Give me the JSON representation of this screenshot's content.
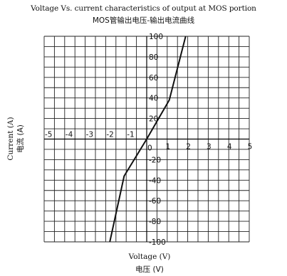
{
  "chart_data": {
    "type": "line",
    "title": "Voltage Vs. current characteristics of output at MOS portion",
    "subtitle": "MOS管输出电压-输出电流曲线",
    "xlabel": "Voltage (V)",
    "xlabel_cn": "电压 (V)",
    "ylabel": "Current (A)",
    "ylabel_cn": "电流 (A)",
    "xlim": [
      -5,
      5
    ],
    "ylim": [
      -100,
      100
    ],
    "x_ticks": [
      -5,
      -4,
      -3,
      -2,
      -1,
      0,
      1,
      2,
      3,
      4,
      5
    ],
    "x_tick_labels": [
      "-5",
      "-4",
      "-3",
      "-2",
      "-1",
      "0",
      "1",
      "2",
      "3",
      "4",
      "5"
    ],
    "y_ticks": [
      100,
      80,
      60,
      40,
      20,
      -20,
      -40,
      -60,
      -80,
      -100
    ],
    "y_tick_labels": [
      "100",
      "80",
      "60",
      "40",
      "20",
      "-20",
      "-40",
      "-60",
      "-80",
      "-100"
    ],
    "grid": true,
    "series": [
      {
        "x": [
          -1.8,
          -1.1,
          0,
          1.1,
          1.9
        ],
        "y": [
          -100,
          -36,
          0,
          38,
          100
        ]
      }
    ],
    "line_color": "#111111"
  }
}
